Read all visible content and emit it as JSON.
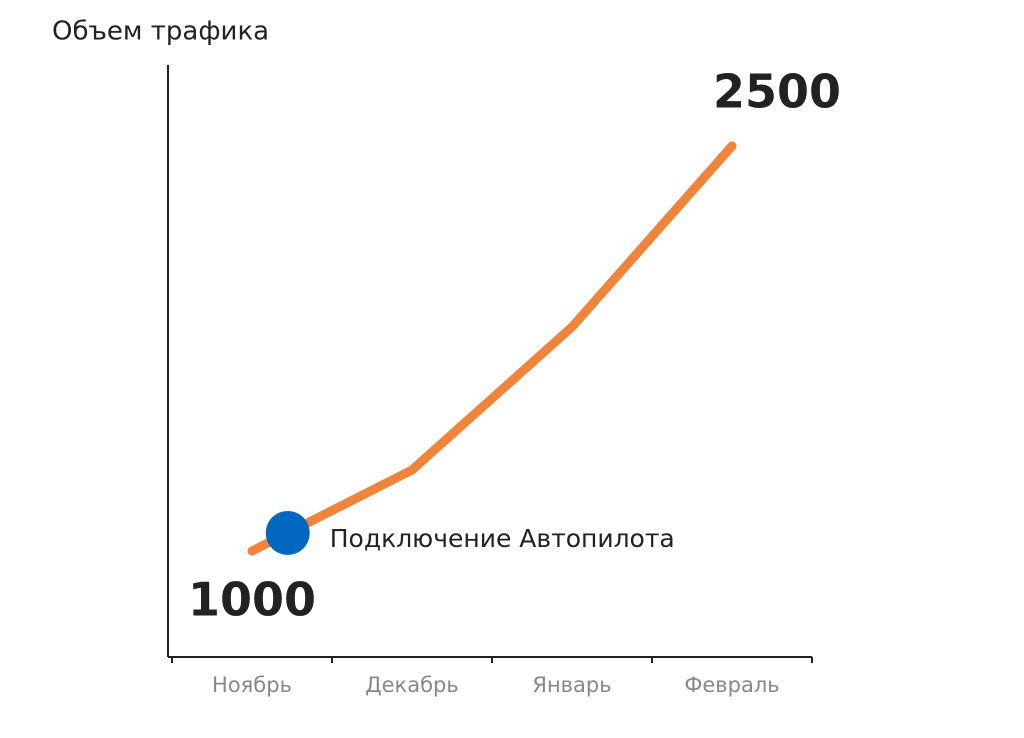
{
  "chart_data": {
    "type": "line",
    "title": "Объем трафика",
    "categories": [
      "Ноябрь",
      "Декабрь",
      "Январь",
      "Февраль"
    ],
    "series": [
      {
        "color": "#f0843a",
        "values": [
          1000,
          1300,
          1830,
          2500
        ]
      }
    ],
    "ylim": [
      615,
      2800
    ],
    "annotation": {
      "text": "Подключение Автопилота",
      "value": 1067,
      "color": "#0068c0"
    }
  }
}
